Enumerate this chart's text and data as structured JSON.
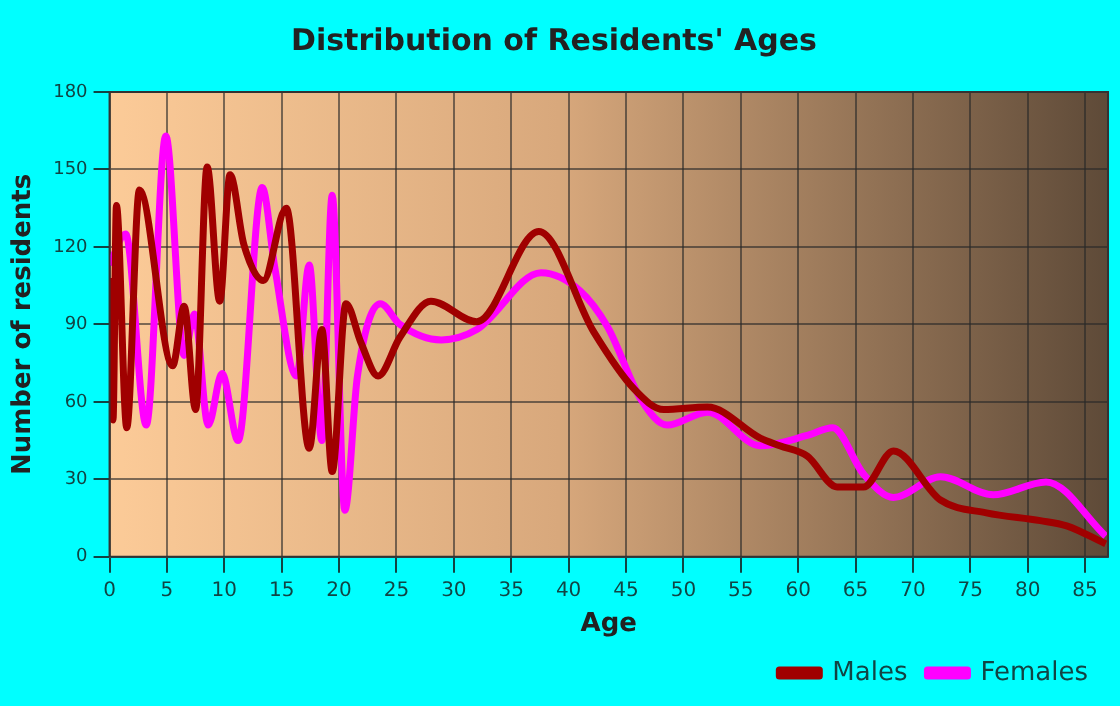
{
  "chart_data": {
    "type": "line",
    "title": "Distribution of Residents' Ages",
    "xlabel": "Age",
    "ylabel": "Number of residents",
    "xlim": [
      0,
      87
    ],
    "xticks": [
      0,
      5,
      10,
      15,
      20,
      25,
      30,
      35,
      40,
      45,
      50,
      55,
      60,
      65,
      70,
      75,
      80,
      85
    ],
    "ylim": [
      0,
      180
    ],
    "yticks": [
      0,
      30,
      60,
      90,
      120,
      150,
      180
    ],
    "grid": true,
    "legend": "bottom right",
    "marker": "none",
    "line_style": "solid",
    "series": [
      {
        "name": "Males",
        "color": "#a00000",
        "x": [
          0,
          0.3,
          0.6,
          1.5,
          2.6,
          5.5,
          6.5,
          7.5,
          8.5,
          9.6,
          10.5,
          11.7,
          13.4,
          15.4,
          17.4,
          18.5,
          19.4,
          20.6,
          21.9,
          23.4,
          25.3,
          28,
          32,
          37.4,
          42.2,
          45.7,
          48.3,
          52.1,
          56.7,
          58.4,
          60.8,
          63.4,
          65.7,
          68.3,
          72.4,
          76.4,
          81.1,
          83.4,
          86.8
        ],
        "values": [
          108,
          53,
          136,
          50,
          142,
          74,
          97,
          57,
          151,
          99,
          148,
          121,
          107,
          135,
          42,
          88,
          33,
          98,
          83,
          70,
          85,
          99,
          91,
          126,
          87,
          65,
          57,
          58,
          46,
          43,
          39,
          27,
          27,
          41,
          22,
          17,
          14,
          12,
          5
        ]
      },
      {
        "name": "Females",
        "color": "#ff00ff",
        "x": [
          0,
          1.4,
          3.2,
          4.9,
          6.5,
          7.4,
          8.6,
          9.8,
          11.2,
          13.3,
          14.4,
          16.3,
          17.4,
          18.5,
          19.4,
          20.5,
          21.6,
          23.6,
          25.3,
          28.9,
          32,
          37.6,
          41,
          43.4,
          46.3,
          48.6,
          52.1,
          56.7,
          60.8,
          63,
          65.7,
          68.3,
          72.4,
          77,
          81.6,
          86.8
        ],
        "values": [
          113,
          125,
          51,
          163,
          78,
          94,
          51,
          71,
          45,
          143,
          112,
          70,
          113,
          45,
          140,
          18,
          70,
          98,
          90,
          84,
          88,
          110,
          103,
          89,
          61,
          51,
          56,
          43,
          47,
          50,
          32,
          23,
          31,
          24,
          29,
          8
        ]
      }
    ]
  }
}
